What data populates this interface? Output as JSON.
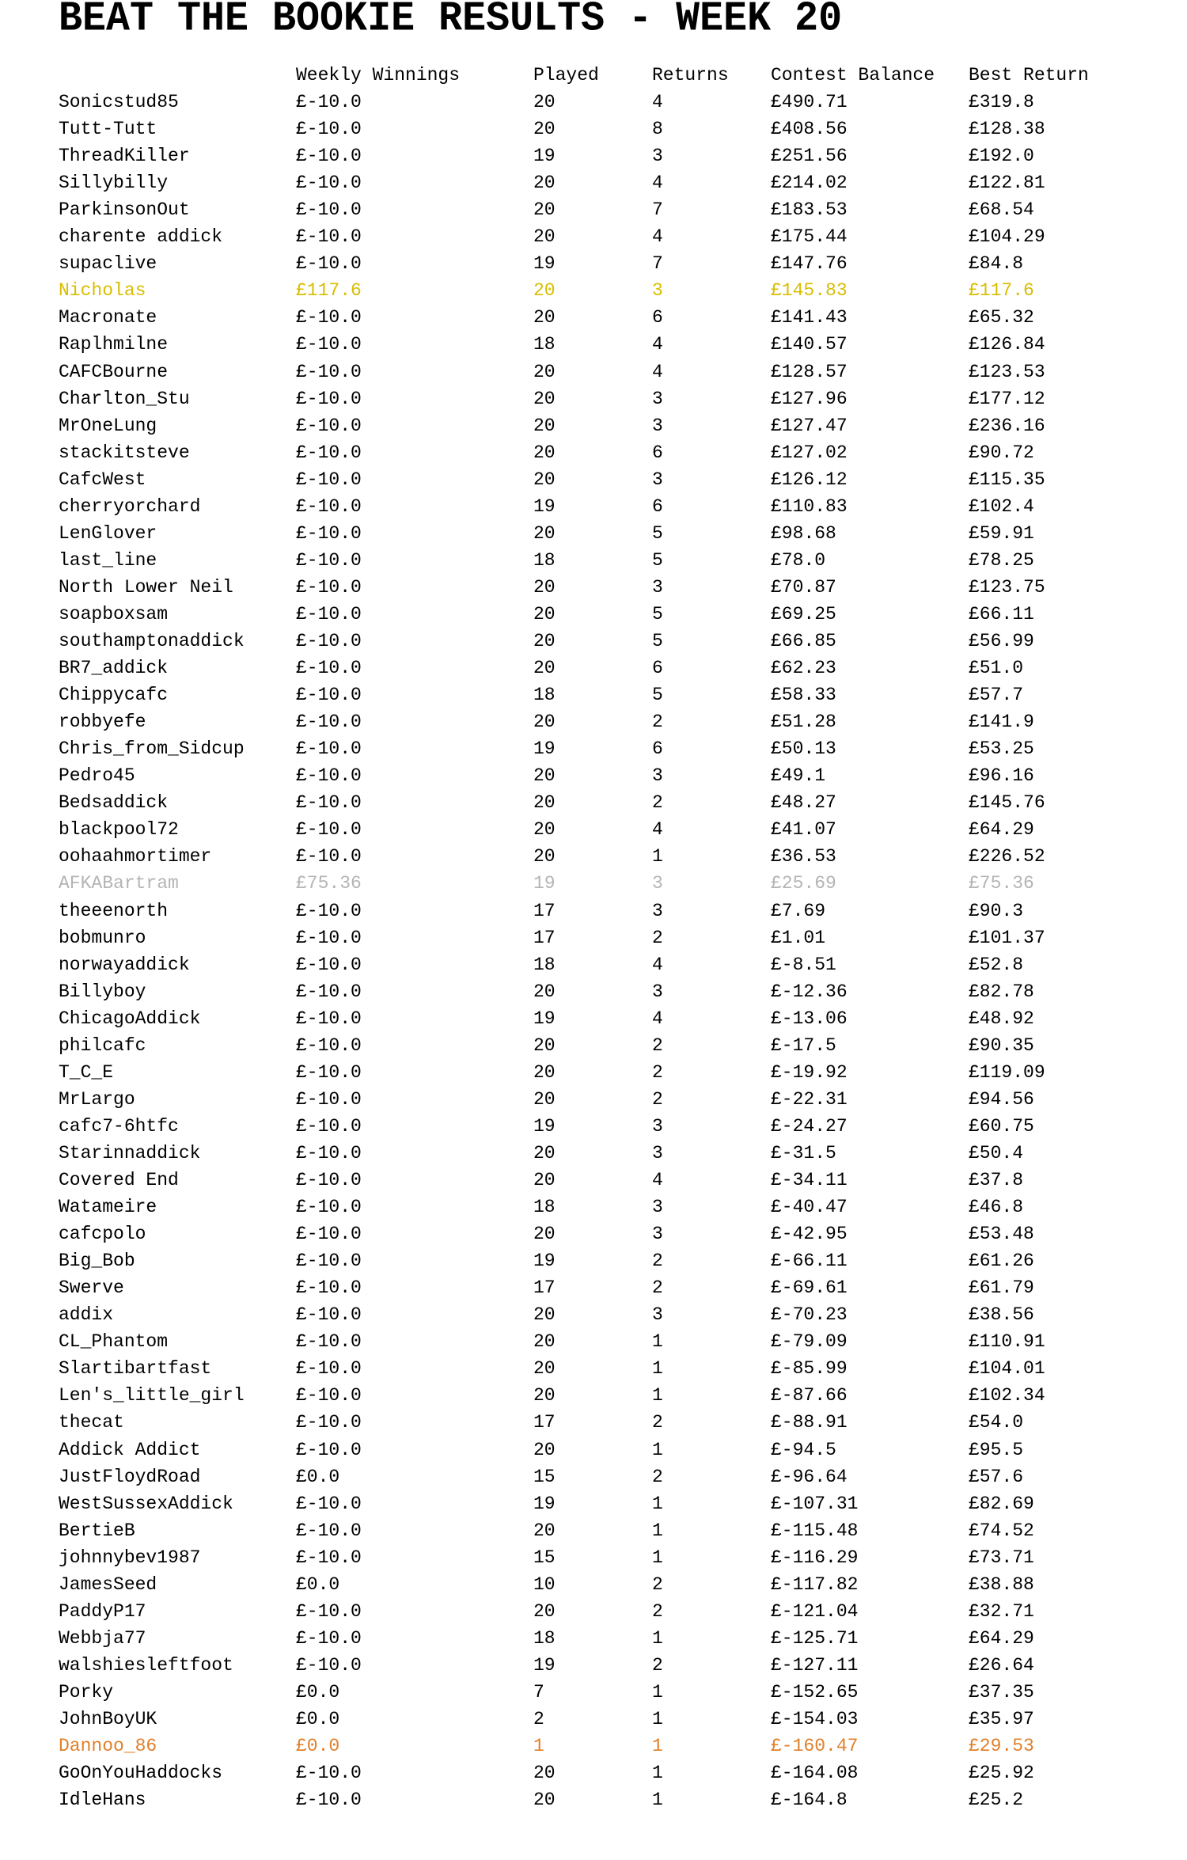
{
  "title": "BEAT THE BOOKIE RESULTS - WEEK 20",
  "columns": [
    "",
    "Weekly Winnings",
    "Played",
    "Returns",
    "Contest Balance",
    "Best Return"
  ],
  "highlight_colors": {
    "yellow": "#d9bd00",
    "gray": "#b4b4b4",
    "orange": "#e0802a"
  },
  "rows": [
    {
      "name": "Sonicstud85",
      "weekly": "£-10.0",
      "played": "20",
      "returns": "4",
      "balance": "£490.71",
      "best": "£319.8"
    },
    {
      "name": "Tutt-Tutt",
      "weekly": "£-10.0",
      "played": "20",
      "returns": "8",
      "balance": "£408.56",
      "best": "£128.38"
    },
    {
      "name": "ThreadKiller",
      "weekly": "£-10.0",
      "played": "19",
      "returns": "3",
      "balance": "£251.56",
      "best": "£192.0"
    },
    {
      "name": "Sillybilly",
      "weekly": "£-10.0",
      "played": "20",
      "returns": "4",
      "balance": "£214.02",
      "best": "£122.81"
    },
    {
      "name": "ParkinsonOut",
      "weekly": "£-10.0",
      "played": "20",
      "returns": "7",
      "balance": "£183.53",
      "best": "£68.54"
    },
    {
      "name": "charente addick",
      "weekly": "£-10.0",
      "played": "20",
      "returns": "4",
      "balance": "£175.44",
      "best": "£104.29"
    },
    {
      "name": "supaclive",
      "weekly": "£-10.0",
      "played": "19",
      "returns": "7",
      "balance": "£147.76",
      "best": "£84.8"
    },
    {
      "name": "Nicholas",
      "weekly": "£117.6",
      "played": "20",
      "returns": "3",
      "balance": "£145.83",
      "best": "£117.6",
      "highlight": "yellow"
    },
    {
      "name": "Macronate",
      "weekly": "£-10.0",
      "played": "20",
      "returns": "6",
      "balance": "£141.43",
      "best": "£65.32"
    },
    {
      "name": "Raplhmilne",
      "weekly": "£-10.0",
      "played": "18",
      "returns": "4",
      "balance": "£140.57",
      "best": "£126.84"
    },
    {
      "name": "CAFCBourne",
      "weekly": "£-10.0",
      "played": "20",
      "returns": "4",
      "balance": "£128.57",
      "best": "£123.53"
    },
    {
      "name": "Charlton_Stu",
      "weekly": "£-10.0",
      "played": "20",
      "returns": "3",
      "balance": "£127.96",
      "best": "£177.12"
    },
    {
      "name": "MrOneLung",
      "weekly": "£-10.0",
      "played": "20",
      "returns": "3",
      "balance": "£127.47",
      "best": "£236.16"
    },
    {
      "name": "stackitsteve",
      "weekly": "£-10.0",
      "played": "20",
      "returns": "6",
      "balance": "£127.02",
      "best": "£90.72"
    },
    {
      "name": "CafcWest",
      "weekly": "£-10.0",
      "played": "20",
      "returns": "3",
      "balance": "£126.12",
      "best": "£115.35"
    },
    {
      "name": "cherryorchard",
      "weekly": "£-10.0",
      "played": "19",
      "returns": "6",
      "balance": "£110.83",
      "best": "£102.4"
    },
    {
      "name": "LenGlover",
      "weekly": "£-10.0",
      "played": "20",
      "returns": "5",
      "balance": "£98.68",
      "best": "£59.91"
    },
    {
      "name": "last_line",
      "weekly": "£-10.0",
      "played": "18",
      "returns": "5",
      "balance": "£78.0",
      "best": "£78.25"
    },
    {
      "name": "North Lower Neil",
      "weekly": "£-10.0",
      "played": "20",
      "returns": "3",
      "balance": "£70.87",
      "best": "£123.75"
    },
    {
      "name": "soapboxsam",
      "weekly": "£-10.0",
      "played": "20",
      "returns": "5",
      "balance": "£69.25",
      "best": "£66.11"
    },
    {
      "name": "southamptonaddick",
      "weekly": "£-10.0",
      "played": "20",
      "returns": "5",
      "balance": "£66.85",
      "best": "£56.99"
    },
    {
      "name": "BR7_addick",
      "weekly": "£-10.0",
      "played": "20",
      "returns": "6",
      "balance": "£62.23",
      "best": "£51.0"
    },
    {
      "name": "Chippycafc",
      "weekly": "£-10.0",
      "played": "18",
      "returns": "5",
      "balance": "£58.33",
      "best": "£57.7"
    },
    {
      "name": "robbyefe",
      "weekly": "£-10.0",
      "played": "20",
      "returns": "2",
      "balance": "£51.28",
      "best": "£141.9"
    },
    {
      "name": "Chris_from_Sidcup",
      "weekly": "£-10.0",
      "played": "19",
      "returns": "6",
      "balance": "£50.13",
      "best": "£53.25"
    },
    {
      "name": "Pedro45",
      "weekly": "£-10.0",
      "played": "20",
      "returns": "3",
      "balance": "£49.1",
      "best": "£96.16"
    },
    {
      "name": "Bedsaddick",
      "weekly": "£-10.0",
      "played": "20",
      "returns": "2",
      "balance": "£48.27",
      "best": "£145.76"
    },
    {
      "name": "blackpool72",
      "weekly": "£-10.0",
      "played": "20",
      "returns": "4",
      "balance": "£41.07",
      "best": "£64.29"
    },
    {
      "name": "oohaahmortimer",
      "weekly": "£-10.0",
      "played": "20",
      "returns": "1",
      "balance": "£36.53",
      "best": "£226.52"
    },
    {
      "name": "AFKABartram",
      "weekly": "£75.36",
      "played": "19",
      "returns": "3",
      "balance": "£25.69",
      "best": "£75.36",
      "highlight": "gray"
    },
    {
      "name": "theeenorth",
      "weekly": "£-10.0",
      "played": "17",
      "returns": "3",
      "balance": "£7.69",
      "best": "£90.3"
    },
    {
      "name": "bobmunro",
      "weekly": "£-10.0",
      "played": "17",
      "returns": "2",
      "balance": "£1.01",
      "best": "£101.37"
    },
    {
      "name": "norwayaddick",
      "weekly": "£-10.0",
      "played": "18",
      "returns": "4",
      "balance": "£-8.51",
      "best": "£52.8"
    },
    {
      "name": "Billyboy",
      "weekly": "£-10.0",
      "played": "20",
      "returns": "3",
      "balance": "£-12.36",
      "best": "£82.78"
    },
    {
      "name": "ChicagoAddick",
      "weekly": "£-10.0",
      "played": "19",
      "returns": "4",
      "balance": "£-13.06",
      "best": "£48.92"
    },
    {
      "name": "philcafc",
      "weekly": "£-10.0",
      "played": "20",
      "returns": "2",
      "balance": "£-17.5",
      "best": "£90.35"
    },
    {
      "name": "T_C_E",
      "weekly": "£-10.0",
      "played": "20",
      "returns": "2",
      "balance": "£-19.92",
      "best": "£119.09"
    },
    {
      "name": "MrLargo",
      "weekly": "£-10.0",
      "played": "20",
      "returns": "2",
      "balance": "£-22.31",
      "best": "£94.56"
    },
    {
      "name": "cafc7-6htfc",
      "weekly": "£-10.0",
      "played": "19",
      "returns": "3",
      "balance": "£-24.27",
      "best": "£60.75"
    },
    {
      "name": "Starinnaddick",
      "weekly": "£-10.0",
      "played": "20",
      "returns": "3",
      "balance": "£-31.5",
      "best": "£50.4"
    },
    {
      "name": "Covered End",
      "weekly": "£-10.0",
      "played": "20",
      "returns": "4",
      "balance": "£-34.11",
      "best": "£37.8"
    },
    {
      "name": "Watameire",
      "weekly": "£-10.0",
      "played": "18",
      "returns": "3",
      "balance": "£-40.47",
      "best": "£46.8"
    },
    {
      "name": "cafcpolo",
      "weekly": "£-10.0",
      "played": "20",
      "returns": "3",
      "balance": "£-42.95",
      "best": "£53.48"
    },
    {
      "name": "Big_Bob",
      "weekly": "£-10.0",
      "played": "19",
      "returns": "2",
      "balance": "£-66.11",
      "best": "£61.26"
    },
    {
      "name": "Swerve",
      "weekly": "£-10.0",
      "played": "17",
      "returns": "2",
      "balance": "£-69.61",
      "best": "£61.79"
    },
    {
      "name": "addix",
      "weekly": "£-10.0",
      "played": "20",
      "returns": "3",
      "balance": "£-70.23",
      "best": "£38.56"
    },
    {
      "name": "CL_Phantom",
      "weekly": "£-10.0",
      "played": "20",
      "returns": "1",
      "balance": "£-79.09",
      "best": "£110.91"
    },
    {
      "name": "Slartibartfast",
      "weekly": "£-10.0",
      "played": "20",
      "returns": "1",
      "balance": "£-85.99",
      "best": "£104.01"
    },
    {
      "name": "Len's_little_girl",
      "weekly": "£-10.0",
      "played": "20",
      "returns": "1",
      "balance": "£-87.66",
      "best": "£102.34"
    },
    {
      "name": "thecat",
      "weekly": "£-10.0",
      "played": "17",
      "returns": "2",
      "balance": "£-88.91",
      "best": "£54.0"
    },
    {
      "name": "Addick Addict",
      "weekly": "£-10.0",
      "played": "20",
      "returns": "1",
      "balance": "£-94.5",
      "best": "£95.5"
    },
    {
      "name": "JustFloydRoad",
      "weekly": "£0.0",
      "played": "15",
      "returns": "2",
      "balance": "£-96.64",
      "best": "£57.6"
    },
    {
      "name": "WestSussexAddick",
      "weekly": "£-10.0",
      "played": "19",
      "returns": "1",
      "balance": "£-107.31",
      "best": "£82.69"
    },
    {
      "name": "BertieB",
      "weekly": "£-10.0",
      "played": "20",
      "returns": "1",
      "balance": "£-115.48",
      "best": "£74.52"
    },
    {
      "name": "johnnybev1987",
      "weekly": "£-10.0",
      "played": "15",
      "returns": "1",
      "balance": "£-116.29",
      "best": "£73.71"
    },
    {
      "name": "JamesSeed",
      "weekly": "£0.0",
      "played": "10",
      "returns": "2",
      "balance": "£-117.82",
      "best": "£38.88"
    },
    {
      "name": "PaddyP17",
      "weekly": "£-10.0",
      "played": "20",
      "returns": "2",
      "balance": "£-121.04",
      "best": "£32.71"
    },
    {
      "name": "Webbja77",
      "weekly": "£-10.0",
      "played": "18",
      "returns": "1",
      "balance": "£-125.71",
      "best": "£64.29"
    },
    {
      "name": "walshiesleftfoot",
      "weekly": "£-10.0",
      "played": "19",
      "returns": "2",
      "balance": "£-127.11",
      "best": "£26.64"
    },
    {
      "name": "Porky",
      "weekly": "£0.0",
      "played": "7",
      "returns": "1",
      "balance": "£-152.65",
      "best": "£37.35"
    },
    {
      "name": "JohnBoyUK",
      "weekly": "£0.0",
      "played": "2",
      "returns": "1",
      "balance": "£-154.03",
      "best": "£35.97"
    },
    {
      "name": "Dannoo_86",
      "weekly": "£0.0",
      "played": "1",
      "returns": "1",
      "balance": "£-160.47",
      "best": "£29.53",
      "highlight": "orange"
    },
    {
      "name": "GoOnYouHaddocks",
      "weekly": "£-10.0",
      "played": "20",
      "returns": "1",
      "balance": "£-164.08",
      "best": "£25.92"
    },
    {
      "name": "IdleHans",
      "weekly": "£-10.0",
      "played": "20",
      "returns": "1",
      "balance": "£-164.8",
      "best": "£25.2"
    }
  ]
}
